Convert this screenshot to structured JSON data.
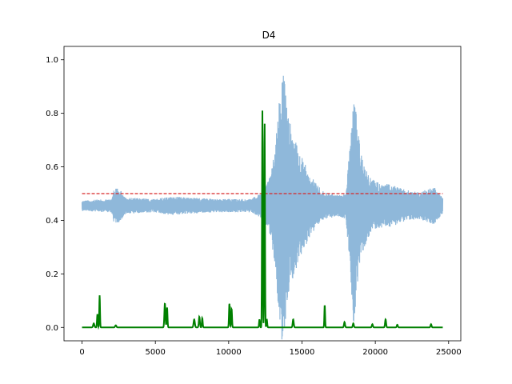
{
  "chart_data": {
    "type": "line",
    "title": "D4",
    "xlabel": "",
    "ylabel": "",
    "xlim": [
      -1230,
      25830
    ],
    "ylim": [
      -0.05,
      1.05
    ],
    "grid": false,
    "legend": "none",
    "x_ticks": [
      0,
      5000,
      10000,
      15000,
      20000,
      25000
    ],
    "x_tick_labels": [
      "0",
      "5000",
      "10000",
      "15000",
      "20000",
      "25000"
    ],
    "y_ticks": [
      0.0,
      0.2,
      0.4,
      0.6,
      0.8,
      1.0
    ],
    "y_tick_labels": [
      "0.0",
      "0.2",
      "0.4",
      "0.6",
      "0.8",
      "1.0"
    ],
    "series": [
      {
        "style": "signal",
        "color": "#8fb8da",
        "baseline": 0.455,
        "envelope": [
          [
            0,
            0.02
          ],
          [
            2000,
            0.025
          ],
          [
            2200,
            0.07
          ],
          [
            2600,
            0.06
          ],
          [
            3000,
            0.03
          ],
          [
            5000,
            0.025
          ],
          [
            6000,
            0.035
          ],
          [
            9000,
            0.025
          ],
          [
            11500,
            0.025
          ],
          [
            12000,
            0.04
          ],
          [
            12400,
            0.06
          ],
          [
            12900,
            0.12
          ],
          [
            13200,
            0.25
          ],
          [
            13500,
            0.45
          ],
          [
            13700,
            0.55
          ],
          [
            14000,
            0.35
          ],
          [
            14500,
            0.25
          ],
          [
            15000,
            0.18
          ],
          [
            15500,
            0.12
          ],
          [
            16000,
            0.08
          ],
          [
            16500,
            0.05
          ],
          [
            17500,
            0.04
          ],
          [
            18000,
            0.05
          ],
          [
            18300,
            0.25
          ],
          [
            18500,
            0.45
          ],
          [
            18700,
            0.35
          ],
          [
            19000,
            0.2
          ],
          [
            19500,
            0.12
          ],
          [
            20000,
            0.09
          ],
          [
            21000,
            0.08
          ],
          [
            22000,
            0.06
          ],
          [
            23000,
            0.05
          ],
          [
            24000,
            0.07
          ],
          [
            24600,
            0.03
          ]
        ]
      },
      {
        "style": "dashed",
        "color": "#d62728",
        "x": [
          0,
          24600
        ],
        "y": [
          0.5,
          0.5
        ]
      },
      {
        "style": "line",
        "color": "#008000",
        "baseline": 0.0,
        "peaks": [
          [
            800,
            0.015,
            60
          ],
          [
            1050,
            0.05,
            40
          ],
          [
            1200,
            0.12,
            35
          ],
          [
            2300,
            0.008,
            60
          ],
          [
            5650,
            0.09,
            50
          ],
          [
            5800,
            0.075,
            40
          ],
          [
            7650,
            0.03,
            60
          ],
          [
            8000,
            0.04,
            50
          ],
          [
            8200,
            0.035,
            40
          ],
          [
            10050,
            0.09,
            40
          ],
          [
            10200,
            0.07,
            40
          ],
          [
            12100,
            0.03,
            40
          ],
          [
            12300,
            0.81,
            35
          ],
          [
            12450,
            0.77,
            35
          ],
          [
            12600,
            0.03,
            40
          ],
          [
            14400,
            0.03,
            50
          ],
          [
            16550,
            0.085,
            35
          ],
          [
            17900,
            0.02,
            50
          ],
          [
            18500,
            0.015,
            50
          ],
          [
            19800,
            0.012,
            50
          ],
          [
            20700,
            0.03,
            50
          ],
          [
            21500,
            0.01,
            50
          ],
          [
            23800,
            0.012,
            50
          ]
        ]
      }
    ]
  }
}
